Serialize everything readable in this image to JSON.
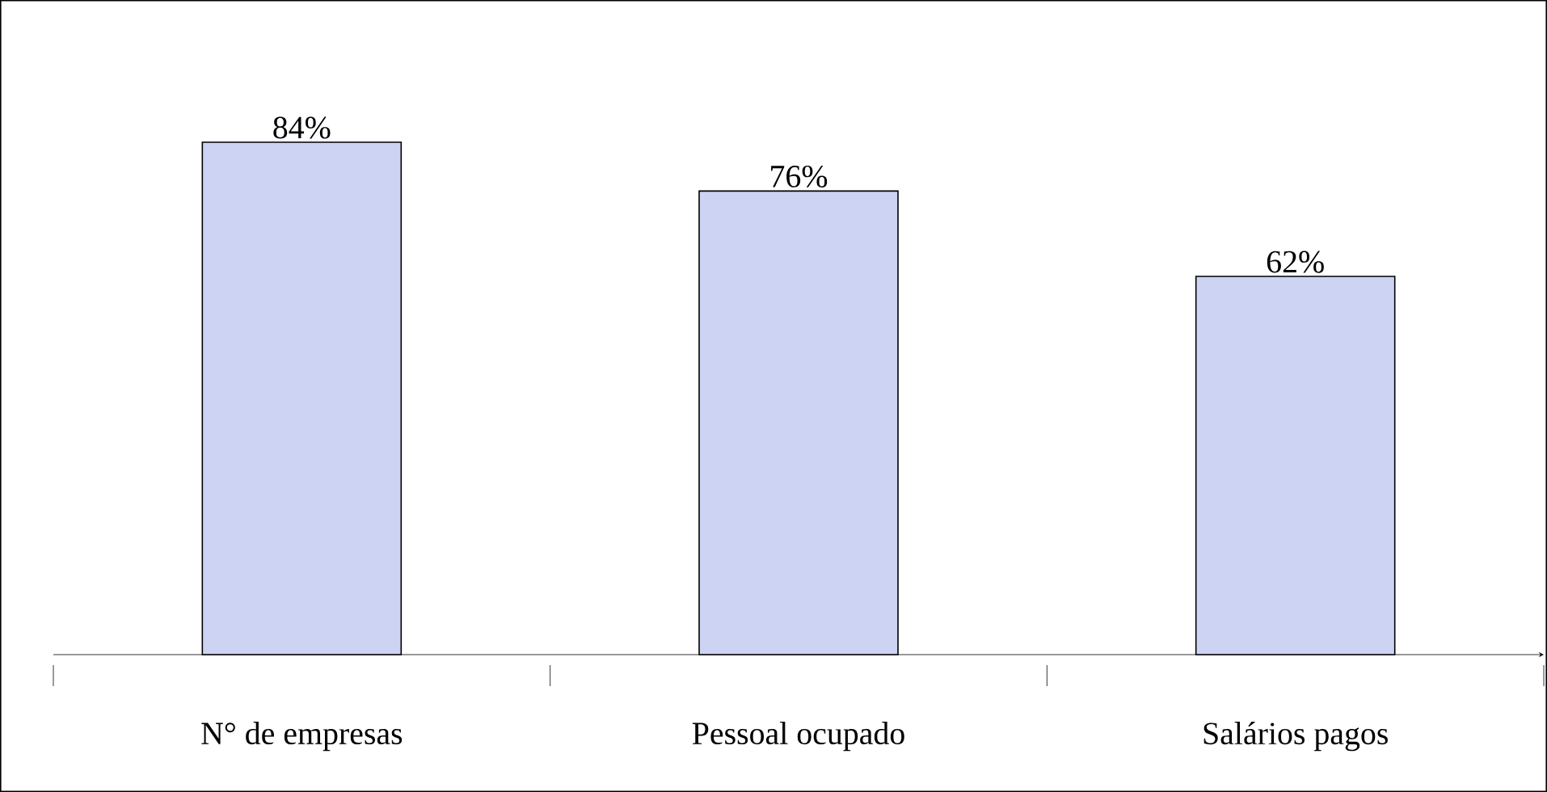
{
  "chart_data": {
    "type": "bar",
    "categories": [
      "N° de empresas",
      "Pessoal ocupado",
      "Salários pagos"
    ],
    "values": [
      84,
      76,
      62
    ],
    "value_labels": [
      "84%",
      "76%",
      "62%"
    ],
    "color": "#cdd3f2"
  }
}
